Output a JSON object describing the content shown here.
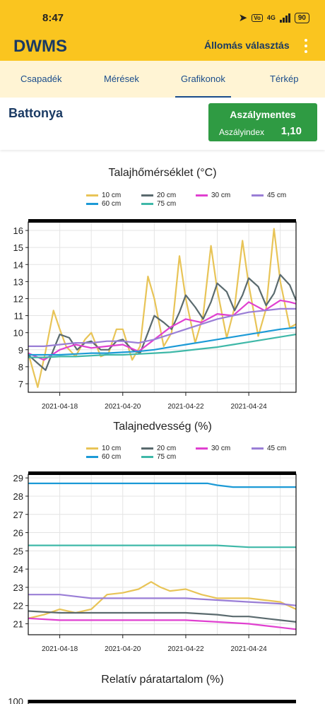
{
  "status_bar": {
    "time": "8:47",
    "battery": "90",
    "network": "4G"
  },
  "app_bar": {
    "title": "DWMS",
    "station_select": "Állomás választás"
  },
  "tabs": [
    {
      "label": "Csapadék"
    },
    {
      "label": "Mérések"
    },
    {
      "label": "Grafikonok"
    },
    {
      "label": "Térkép"
    }
  ],
  "header": {
    "station": "Battonya",
    "drought_status": "Aszálymentes",
    "drought_index_label": "Aszályindex",
    "drought_index_value": "1,10"
  },
  "colors": {
    "accent": "#fac51f",
    "tab_bar_bg": "#fff4d4",
    "primary_text": "#1a3a63",
    "status_green": "#2f9b43",
    "series": {
      "10 cm": "#e8c457",
      "20 cm": "#5a6a6e",
      "30 cm": "#e040d0",
      "45 cm": "#9a7ed6",
      "60 cm": "#1c9ad6",
      "75 cm": "#3fb8a8"
    }
  },
  "chart_data": [
    {
      "type": "line",
      "title": "Talajhőmérséklet (°C)",
      "x_ticks": [
        "2021-04-18",
        "2021-04-20",
        "2021-04-22",
        "2021-04-24"
      ],
      "xlim": [
        "2021-04-17",
        "2021-04-25.5"
      ],
      "ylim": [
        6.5,
        16.5
      ],
      "y_ticks": [
        7,
        8,
        9,
        10,
        11,
        12,
        13,
        14,
        15,
        16
      ],
      "grid": true,
      "legend_position": "top",
      "series": [
        {
          "name": "10 cm",
          "color": "#e8c457",
          "x": [
            17.0,
            17.3,
            17.55,
            17.8,
            18.0,
            18.2,
            18.5,
            18.8,
            19.0,
            19.3,
            19.55,
            19.8,
            20.0,
            20.3,
            20.55,
            20.8,
            21.0,
            21.3,
            21.55,
            21.8,
            22.0,
            22.3,
            22.55,
            22.8,
            23.0,
            23.3,
            23.55,
            23.8,
            24.0,
            24.3,
            24.55,
            24.8,
            25.0,
            25.3,
            25.5
          ],
          "y": [
            8.8,
            6.8,
            8.9,
            11.3,
            10.2,
            9.2,
            8.6,
            9.6,
            10.0,
            8.6,
            8.8,
            10.2,
            10.2,
            8.4,
            9.2,
            13.3,
            12.0,
            9.2,
            10.0,
            14.5,
            12.0,
            9.4,
            11.0,
            15.1,
            12.5,
            9.7,
            11.5,
            15.4,
            12.8,
            9.8,
            11.4,
            16.1,
            13.0,
            10.3,
            10.5
          ]
        },
        {
          "name": "20 cm",
          "color": "#5a6a6e",
          "x": [
            17.0,
            17.3,
            17.55,
            17.8,
            18.0,
            18.3,
            18.55,
            18.8,
            19.0,
            19.3,
            19.55,
            19.8,
            20.0,
            20.3,
            20.55,
            20.8,
            21.0,
            21.3,
            21.55,
            21.8,
            22.0,
            22.3,
            22.55,
            22.8,
            23.0,
            23.3,
            23.55,
            23.8,
            24.0,
            24.3,
            24.55,
            24.8,
            25.0,
            25.3,
            25.5
          ],
          "y": [
            8.7,
            8.2,
            7.8,
            9.0,
            9.9,
            9.7,
            9.0,
            9.4,
            9.5,
            9.0,
            9.0,
            9.5,
            9.6,
            9.0,
            8.8,
            10.0,
            11.0,
            10.6,
            10.2,
            11.2,
            12.2,
            11.5,
            10.8,
            11.8,
            12.9,
            12.4,
            11.3,
            12.2,
            13.2,
            12.7,
            11.6,
            12.3,
            13.4,
            12.8,
            11.9
          ]
        },
        {
          "name": "30 cm",
          "color": "#e040d0",
          "x": [
            17.0,
            17.5,
            18.0,
            18.5,
            19.0,
            19.5,
            20.0,
            20.5,
            21.0,
            21.5,
            22.0,
            22.5,
            23.0,
            23.5,
            24.0,
            24.5,
            25.0,
            25.3,
            25.5
          ],
          "y": [
            8.8,
            8.4,
            9.0,
            9.3,
            9.1,
            9.2,
            9.3,
            8.9,
            9.6,
            10.3,
            10.8,
            10.6,
            11.1,
            11.0,
            11.8,
            11.3,
            11.9,
            11.8,
            11.7
          ]
        },
        {
          "name": "45 cm",
          "color": "#9a7ed6",
          "x": [
            17.0,
            17.5,
            18.0,
            18.5,
            19.0,
            19.5,
            20.0,
            20.5,
            21.0,
            21.5,
            22.0,
            22.5,
            23.0,
            23.5,
            24.0,
            24.5,
            25.0,
            25.5
          ],
          "y": [
            9.2,
            9.2,
            9.3,
            9.4,
            9.4,
            9.5,
            9.5,
            9.4,
            9.6,
            9.9,
            10.2,
            10.5,
            10.8,
            11.0,
            11.2,
            11.3,
            11.4,
            11.4
          ]
        },
        {
          "name": "60 cm",
          "color": "#1c9ad6",
          "x": [
            17.0,
            17.5,
            18.0,
            18.5,
            19.0,
            19.5,
            20.0,
            20.5,
            21.0,
            21.5,
            22.0,
            22.5,
            23.0,
            23.5,
            24.0,
            24.5,
            25.0,
            25.5
          ],
          "y": [
            8.7,
            8.7,
            8.7,
            8.75,
            8.8,
            8.8,
            8.85,
            8.9,
            9.0,
            9.15,
            9.3,
            9.45,
            9.6,
            9.75,
            9.9,
            10.05,
            10.2,
            10.3
          ]
        },
        {
          "name": "75 cm",
          "color": "#3fb8a8",
          "x": [
            17.0,
            17.5,
            18.0,
            18.5,
            19.0,
            19.5,
            20.0,
            20.5,
            21.0,
            21.5,
            22.0,
            22.5,
            23.0,
            23.5,
            24.0,
            24.5,
            25.0,
            25.5
          ],
          "y": [
            8.55,
            8.55,
            8.6,
            8.6,
            8.65,
            8.7,
            8.7,
            8.75,
            8.8,
            8.85,
            8.95,
            9.05,
            9.15,
            9.3,
            9.45,
            9.6,
            9.75,
            9.9
          ]
        }
      ]
    },
    {
      "type": "line",
      "title": "Talajnedvesség (%)",
      "x_ticks": [
        "2021-04-18",
        "2021-04-20",
        "2021-04-22",
        "2021-04-24"
      ],
      "xlim": [
        "2021-04-17",
        "2021-04-25.5"
      ],
      "ylim": [
        20.4,
        29.2
      ],
      "y_ticks": [
        21,
        22,
        23,
        24,
        25,
        26,
        27,
        28,
        29
      ],
      "grid": true,
      "legend_position": "top",
      "series": [
        {
          "name": "10 cm",
          "color": "#e8c457",
          "x": [
            17.0,
            17.5,
            18.0,
            18.5,
            19.0,
            19.5,
            20.0,
            20.5,
            20.9,
            21.2,
            21.5,
            22.0,
            22.5,
            23.0,
            23.5,
            24.0,
            24.5,
            25.0,
            25.5
          ],
          "y": [
            21.3,
            21.5,
            21.8,
            21.6,
            21.8,
            22.6,
            22.7,
            22.9,
            23.3,
            23.0,
            22.8,
            22.9,
            22.6,
            22.4,
            22.4,
            22.4,
            22.3,
            22.2,
            21.8
          ]
        },
        {
          "name": "20 cm",
          "color": "#5a6a6e",
          "x": [
            17.0,
            18.0,
            19.0,
            20.0,
            21.0,
            22.0,
            23.0,
            23.5,
            24.0,
            24.5,
            25.0,
            25.5
          ],
          "y": [
            21.7,
            21.6,
            21.6,
            21.6,
            21.6,
            21.6,
            21.5,
            21.4,
            21.4,
            21.3,
            21.2,
            21.1
          ]
        },
        {
          "name": "30 cm",
          "color": "#e040d0",
          "x": [
            17.0,
            18.0,
            19.0,
            20.0,
            21.0,
            22.0,
            23.0,
            24.0,
            24.5,
            25.0,
            25.5
          ],
          "y": [
            21.3,
            21.2,
            21.2,
            21.2,
            21.2,
            21.2,
            21.1,
            21.0,
            20.9,
            20.8,
            20.7
          ]
        },
        {
          "name": "45 cm",
          "color": "#9a7ed6",
          "x": [
            17.0,
            18.0,
            18.5,
            19.0,
            20.0,
            21.0,
            22.0,
            23.0,
            24.0,
            25.0,
            25.5
          ],
          "y": [
            22.6,
            22.6,
            22.5,
            22.4,
            22.4,
            22.4,
            22.4,
            22.3,
            22.2,
            22.1,
            22.0
          ]
        },
        {
          "name": "60 cm",
          "color": "#1c9ad6",
          "x": [
            17.0,
            18.0,
            19.0,
            20.0,
            21.0,
            22.0,
            22.7,
            23.0,
            23.5,
            24.0,
            25.0,
            25.5
          ],
          "y": [
            28.7,
            28.7,
            28.7,
            28.7,
            28.7,
            28.7,
            28.7,
            28.6,
            28.5,
            28.5,
            28.5,
            28.5
          ]
        },
        {
          "name": "75 cm",
          "color": "#3fb8a8",
          "x": [
            17.0,
            18.0,
            19.0,
            20.0,
            21.0,
            22.0,
            23.0,
            24.0,
            25.0,
            25.5
          ],
          "y": [
            25.3,
            25.3,
            25.3,
            25.3,
            25.3,
            25.3,
            25.3,
            25.2,
            25.2,
            25.2
          ]
        }
      ]
    },
    {
      "type": "line",
      "title": "Relatív páratartalom (%)",
      "y_ticks": [
        100
      ],
      "series": []
    }
  ]
}
